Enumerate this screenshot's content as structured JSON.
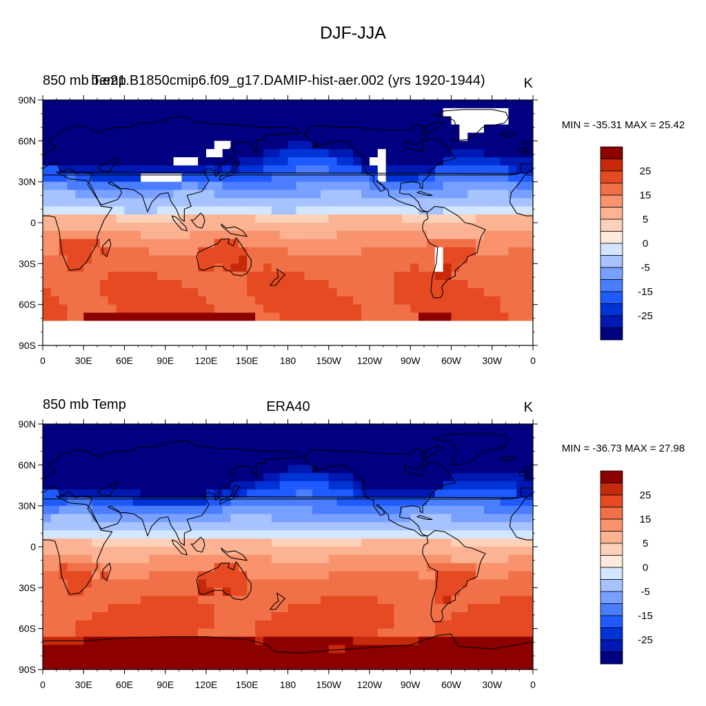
{
  "figure": {
    "title": "DJF-JJA"
  },
  "colors": {
    "levels": [
      "#000080",
      "#0019b3",
      "#0033d6",
      "#1f5aff",
      "#4a7eff",
      "#78a0ff",
      "#a6c3ff",
      "#d2e6ff",
      "#fdeadd",
      "#fcd1b9",
      "#fbb393",
      "#f8936e",
      "#f07148",
      "#e64a23",
      "#c72a0a",
      "#8c0000"
    ],
    "missing": "#ffffff",
    "coast": "#000000"
  },
  "colorbar": {
    "labels": [
      "25",
      "15",
      "5",
      "0",
      "-5",
      "-15",
      "-25"
    ]
  },
  "axes": {
    "lat_labels": [
      "90N",
      "60N",
      "30N",
      "0",
      "30S",
      "60S",
      "90S"
    ],
    "lon_labels": [
      "0",
      "30E",
      "60E",
      "90E",
      "120E",
      "150E",
      "180",
      "150W",
      "120W",
      "90W",
      "60W",
      "30W",
      "0"
    ]
  },
  "panels": [
    {
      "id": "model",
      "left_label": "850 mb Temp",
      "center_label": "b.e21.B1850cmip6.f09_g17.DAMIP-hist-aer.002 (yrs 1920-1944)",
      "units": "K",
      "stats": "MIN = -35.31 MAX =  25.42",
      "min": -35.31,
      "max": 25.42,
      "has_missing": true
    },
    {
      "id": "obs",
      "left_label": "850 mb Temp",
      "center_label": "ERA40",
      "units": "K",
      "stats": "MIN = -36.73 MAX =  27.98",
      "min": -36.73,
      "max": 27.98,
      "has_missing": false
    }
  ]
}
